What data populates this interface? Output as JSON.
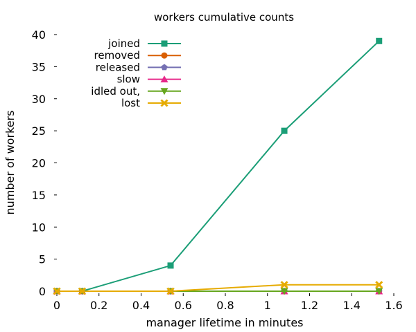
{
  "chart_data": {
    "type": "line",
    "title": "workers cumulative counts",
    "xlabel": "manager lifetime in minutes",
    "ylabel": "number of workers",
    "xlim": [
      0,
      1.6
    ],
    "ylim": [
      0,
      40
    ],
    "xticks": [
      0,
      0.2,
      0.4,
      0.6,
      0.8,
      1,
      1.2,
      1.4,
      1.6
    ],
    "xtick_labels": [
      "0",
      "0.2",
      "0.4",
      "0.6",
      "0.8",
      "1",
      "1.2",
      "1.4",
      "1.6"
    ],
    "yticks": [
      0,
      5,
      10,
      15,
      20,
      25,
      30,
      35,
      40
    ],
    "ytick_labels": [
      "0",
      "5",
      "10",
      "15",
      "20",
      "25",
      "30",
      "35",
      "40"
    ],
    "grid": false,
    "legend_position": "top-left",
    "x": [
      0,
      0.12,
      0.54,
      1.08,
      1.53
    ],
    "series": [
      {
        "name": "joined",
        "values": [
          0,
          0,
          4,
          25,
          39
        ],
        "color": "#1b9e77",
        "marker": "square"
      },
      {
        "name": "removed",
        "values": [
          0,
          0,
          0,
          0,
          0
        ],
        "color": "#d95f02",
        "marker": "circle"
      },
      {
        "name": "released",
        "values": [
          0,
          0,
          0,
          0,
          0
        ],
        "color": "#7570b3",
        "marker": "pentagon"
      },
      {
        "name": "slow",
        "values": [
          0,
          0,
          0,
          0,
          0
        ],
        "color": "#e7298a",
        "marker": "triangle-up"
      },
      {
        "name": "idled out,",
        "values": [
          0,
          0,
          0,
          0,
          0
        ],
        "color": "#66a61e",
        "marker": "triangle-down"
      },
      {
        "name": "lost",
        "values": [
          0,
          0,
          0,
          1,
          1
        ],
        "color": "#e6ab02",
        "marker": "x"
      }
    ]
  }
}
